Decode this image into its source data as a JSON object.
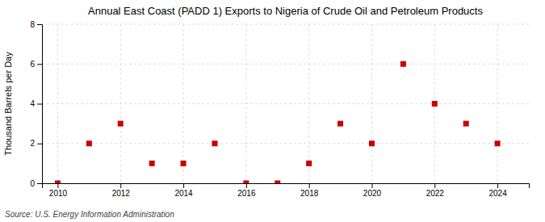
{
  "chart_data": {
    "type": "scatter",
    "title": "Annual East Coast (PADD 1) Exports to Nigeria of Crude Oil and Petroleum Products",
    "ylabel": "Thousand Barrels per Day",
    "source": "Source: U.S. Energy Information Administration",
    "x": [
      2010,
      2011,
      2012,
      2013,
      2014,
      2015,
      2016,
      2017,
      2018,
      2019,
      2020,
      2021,
      2022,
      2023,
      2024
    ],
    "values": [
      0,
      2,
      3,
      1,
      1,
      2,
      0,
      0,
      1,
      3,
      2,
      6,
      4,
      3,
      2
    ],
    "color": "#cc0000",
    "marker": "square",
    "xlim": [
      2009.5,
      2025.0
    ],
    "ylim": [
      0,
      8
    ],
    "xticks": [
      2010,
      2012,
      2014,
      2016,
      2018,
      2020,
      2022,
      2024
    ],
    "yticks": [
      0,
      2,
      4,
      6,
      8
    ],
    "grid": true
  }
}
